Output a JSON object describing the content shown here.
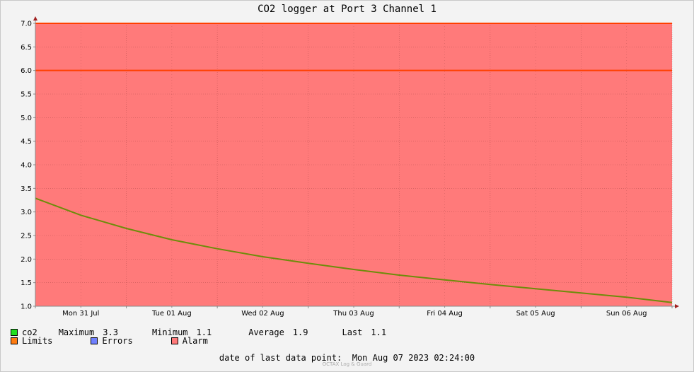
{
  "chart_data": {
    "type": "area",
    "title": "CO2 logger at Port 3 Channel 1",
    "ylim": [
      1.0,
      7.0
    ],
    "yticks": [
      "1.0",
      "1.5",
      "2.0",
      "2.5",
      "3.0",
      "3.5",
      "4.0",
      "4.5",
      "5.0",
      "5.5",
      "6.0",
      "6.5",
      "7.0"
    ],
    "xticks": [
      "Mon 31 Jul",
      "Tue 01 Aug",
      "Wed 02 Aug",
      "Thu 03 Aug",
      "Fri 04 Aug",
      "Sat 05 Aug",
      "Sun 06 Aug"
    ],
    "x_range_days": [
      0,
      7.0
    ],
    "limits": [
      6.0,
      7.0
    ],
    "alarm_band": [
      1.0,
      7.0
    ],
    "series": [
      {
        "name": "co2",
        "x": [
          0,
          0.5,
          1,
          1.5,
          2,
          2.5,
          3,
          3.5,
          4,
          4.5,
          5,
          5.5,
          6,
          6.5,
          7.0
        ],
        "values": [
          3.29,
          2.93,
          2.65,
          2.41,
          2.22,
          2.05,
          1.91,
          1.78,
          1.66,
          1.56,
          1.46,
          1.37,
          1.28,
          1.19,
          1.08
        ]
      }
    ],
    "colors": {
      "alarm_fill": "#ff7a7a",
      "limits": "#ff4000",
      "co2_line": "#6e8c0a",
      "grid": "#a04040"
    }
  },
  "legend": {
    "co2": {
      "label": "co2",
      "max_label": "Maximum",
      "max": "3.3",
      "min_label": "Minimum",
      "min": "1.1",
      "avg_label": "Average",
      "avg": "1.9",
      "last_label": "Last",
      "last": "1.1",
      "color": "#20e020"
    },
    "limits": {
      "label": "Limits",
      "color": "#ff7b10"
    },
    "errors": {
      "label": "Errors",
      "color": "#7080ff"
    },
    "alarm": {
      "label": "Alarm",
      "color": "#ff7a7a"
    }
  },
  "footer": {
    "last_point_label": "date of last data point:",
    "last_point_value": "Mon Aug 07 2023 02:24:00"
  },
  "credit": "OCTAX Log & Guard"
}
